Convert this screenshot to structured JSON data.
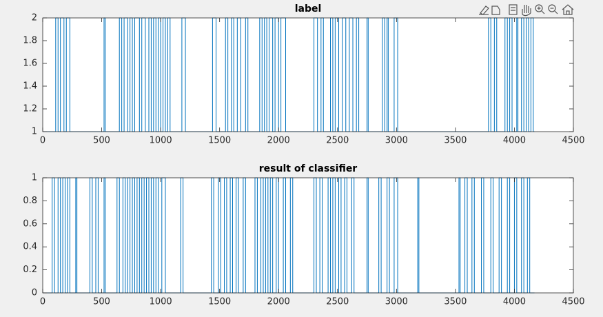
{
  "chart_data": [
    {
      "type": "line",
      "title": "label",
      "color": "#0072bd",
      "xlim": [
        0,
        4500
      ],
      "xticks": [
        0,
        500,
        1000,
        1500,
        2000,
        2500,
        3000,
        3500,
        4000,
        4500
      ],
      "ylim": [
        1,
        2
      ],
      "yticks": [
        1,
        1.2,
        1.4,
        1.6,
        1.8,
        2
      ],
      "x": [
        1,
        110,
        110,
        130,
        130,
        150,
        150,
        180,
        180,
        200,
        200,
        230,
        230,
        520,
        520,
        530,
        530,
        650,
        650,
        670,
        670,
        690,
        690,
        720,
        720,
        740,
        740,
        760,
        760,
        780,
        780,
        820,
        820,
        840,
        840,
        870,
        870,
        900,
        900,
        920,
        920,
        940,
        940,
        960,
        960,
        980,
        980,
        1000,
        1000,
        1020,
        1020,
        1040,
        1040,
        1060,
        1060,
        1080,
        1080,
        1180,
        1180,
        1210,
        1210,
        1440,
        1440,
        1470,
        1470,
        1550,
        1550,
        1570,
        1570,
        1600,
        1600,
        1620,
        1620,
        1650,
        1650,
        1680,
        1680,
        1720,
        1720,
        1740,
        1740,
        1840,
        1840,
        1860,
        1860,
        1880,
        1880,
        1900,
        1900,
        1920,
        1920,
        1950,
        1950,
        1970,
        1970,
        2000,
        2000,
        2020,
        2020,
        2060,
        2060,
        2300,
        2300,
        2330,
        2330,
        2360,
        2360,
        2380,
        2380,
        2440,
        2440,
        2460,
        2460,
        2480,
        2480,
        2510,
        2510,
        2540,
        2540,
        2570,
        2570,
        2600,
        2600,
        2630,
        2630,
        2660,
        2660,
        2680,
        2680,
        2750,
        2750,
        2760,
        2760,
        2880,
        2880,
        2900,
        2900,
        2920,
        2920,
        2930,
        2930,
        2980,
        2980,
        3010,
        3010,
        3780,
        3780,
        3800,
        3800,
        3830,
        3830,
        3850,
        3850,
        3920,
        3920,
        3940,
        3940,
        3960,
        3960,
        3980,
        3980,
        4020,
        4020,
        4030,
        4030,
        4060,
        4060,
        4080,
        4080,
        4100,
        4100,
        4120,
        4120,
        4140,
        4140,
        4160,
        4160,
        4170
      ],
      "values": [
        1,
        1,
        2,
        2,
        1,
        1,
        2,
        2,
        1,
        1,
        2,
        2,
        1,
        1,
        2,
        2,
        1,
        1,
        2,
        2,
        1,
        1,
        2,
        2,
        1,
        1,
        2,
        2,
        1,
        1,
        2,
        2,
        1,
        1,
        2,
        2,
        1,
        1,
        2,
        2,
        1,
        1,
        2,
        2,
        1,
        1,
        2,
        2,
        1,
        1,
        2,
        2,
        1,
        1,
        2,
        2,
        1,
        1,
        2,
        2,
        1,
        1,
        2,
        2,
        1,
        1,
        2,
        2,
        1,
        1,
        2,
        2,
        1,
        1,
        2,
        2,
        1,
        1,
        2,
        2,
        1,
        1,
        2,
        2,
        1,
        1,
        2,
        2,
        1,
        1,
        2,
        2,
        1,
        1,
        2,
        2,
        1,
        1,
        2,
        2,
        1,
        1,
        2,
        2,
        1,
        1,
        2,
        2,
        1,
        1,
        2,
        2,
        1,
        1,
        2,
        2,
        1,
        1,
        2,
        2,
        1,
        1,
        2,
        2,
        1,
        1,
        2,
        2,
        1,
        1,
        2,
        2,
        1,
        1,
        2,
        2,
        1,
        1,
        2,
        2,
        1,
        1,
        2,
        2,
        1,
        1,
        2,
        2,
        1,
        1,
        2,
        2,
        1,
        1,
        2,
        2,
        1,
        1,
        2,
        2,
        1,
        1,
        2,
        2,
        1,
        1,
        2,
        2,
        1,
        1,
        2,
        2,
        1,
        1,
        2,
        2,
        1,
        1
      ]
    },
    {
      "type": "line",
      "title": "result of classifier",
      "color": "#0072bd",
      "xlim": [
        0,
        4500
      ],
      "xticks": [
        0,
        500,
        1000,
        1500,
        2000,
        2500,
        3000,
        3500,
        4000,
        4500
      ],
      "ylim": [
        0,
        1
      ],
      "yticks": [
        0,
        0.2,
        0.4,
        0.6,
        0.8,
        1
      ],
      "x": [
        1,
        80,
        80,
        100,
        100,
        130,
        130,
        150,
        150,
        170,
        170,
        190,
        190,
        210,
        210,
        230,
        230,
        280,
        280,
        290,
        290,
        400,
        400,
        420,
        420,
        450,
        450,
        470,
        470,
        520,
        520,
        530,
        530,
        630,
        630,
        650,
        650,
        680,
        680,
        700,
        700,
        720,
        720,
        740,
        740,
        760,
        760,
        780,
        780,
        800,
        800,
        820,
        820,
        840,
        840,
        860,
        860,
        880,
        880,
        900,
        900,
        920,
        920,
        940,
        940,
        960,
        960,
        980,
        980,
        1010,
        1010,
        1040,
        1040,
        1170,
        1170,
        1190,
        1190,
        1430,
        1430,
        1450,
        1450,
        1490,
        1490,
        1510,
        1510,
        1540,
        1540,
        1560,
        1560,
        1590,
        1590,
        1610,
        1610,
        1640,
        1640,
        1660,
        1660,
        1700,
        1700,
        1720,
        1720,
        1800,
        1800,
        1820,
        1820,
        1850,
        1850,
        1870,
        1870,
        1890,
        1890,
        1910,
        1910,
        1930,
        1930,
        1950,
        1950,
        1980,
        1980,
        2000,
        2000,
        2040,
        2040,
        2060,
        2060,
        2100,
        2100,
        2120,
        2120,
        2300,
        2300,
        2320,
        2320,
        2350,
        2350,
        2370,
        2370,
        2420,
        2420,
        2440,
        2440,
        2460,
        2460,
        2480,
        2480,
        2510,
        2510,
        2530,
        2530,
        2560,
        2560,
        2580,
        2580,
        2620,
        2620,
        2640,
        2640,
        2750,
        2750,
        2760,
        2760,
        2850,
        2850,
        2870,
        2870,
        2920,
        2920,
        2940,
        2940,
        2980,
        2980,
        3010,
        3010,
        3180,
        3180,
        3190,
        3190,
        3530,
        3530,
        3540,
        3540,
        3580,
        3580,
        3600,
        3600,
        3640,
        3640,
        3660,
        3660,
        3720,
        3720,
        3740,
        3740,
        3800,
        3800,
        3820,
        3820,
        3870,
        3870,
        3890,
        3890,
        3940,
        3940,
        3960,
        3960,
        4000,
        4000,
        4020,
        4020,
        4060,
        4060,
        4080,
        4080,
        4110,
        4110,
        4130,
        4130,
        4170
      ],
      "values": [
        0,
        0,
        1,
        1,
        0,
        0,
        1,
        1,
        0,
        0,
        1,
        1,
        0,
        0,
        1,
        1,
        0,
        0,
        1,
        1,
        0,
        0,
        1,
        1,
        0,
        0,
        1,
        1,
        0,
        0,
        1,
        1,
        0,
        0,
        1,
        1,
        0,
        0,
        1,
        1,
        0,
        0,
        1,
        1,
        0,
        0,
        1,
        1,
        0,
        0,
        1,
        1,
        0,
        0,
        1,
        1,
        0,
        0,
        1,
        1,
        0,
        0,
        1,
        1,
        0,
        0,
        1,
        1,
        0,
        0,
        1,
        1,
        0,
        0,
        1,
        1,
        0,
        0,
        1,
        1,
        0,
        0,
        1,
        1,
        0,
        0,
        1,
        1,
        0,
        0,
        1,
        1,
        0,
        0,
        1,
        1,
        0,
        0,
        1,
        1,
        0,
        0,
        1,
        1,
        0,
        0,
        1,
        1,
        0,
        0,
        1,
        1,
        0,
        0,
        1,
        1,
        0,
        0,
        1,
        1,
        0,
        0,
        1,
        1,
        0,
        0,
        1,
        1,
        0,
        0,
        1,
        1,
        0,
        0,
        1,
        1,
        0,
        0,
        1,
        1,
        0,
        0,
        1,
        1,
        0,
        0,
        1,
        1,
        0,
        0,
        1,
        1,
        0,
        0,
        1,
        1,
        0,
        0,
        1,
        1,
        0,
        0,
        1,
        1,
        0,
        0,
        1,
        1,
        0,
        0,
        1,
        1,
        0,
        0,
        1,
        1,
        0,
        0,
        1,
        1,
        0,
        0,
        1,
        1,
        0,
        0,
        1,
        1,
        0,
        0,
        1,
        1,
        0,
        0,
        1,
        1,
        0,
        0,
        1,
        1,
        0,
        0,
        1,
        1,
        0,
        0,
        1,
        1,
        0,
        0,
        1,
        1,
        0,
        0,
        1,
        1,
        0,
        0
      ]
    }
  ]
}
